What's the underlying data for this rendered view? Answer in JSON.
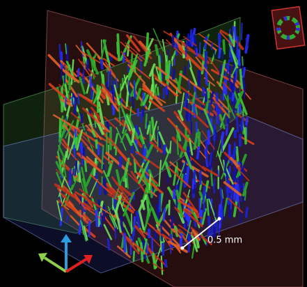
{
  "scale_bar": {
    "label": "0.5 mm"
  }
}
